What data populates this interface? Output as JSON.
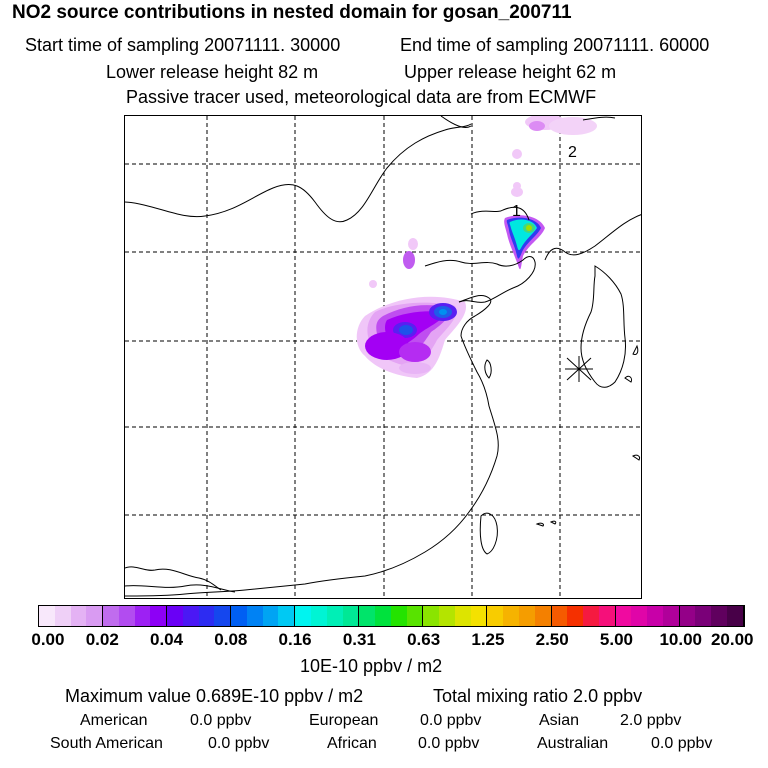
{
  "header": {
    "title": "NO2 source contributions in nested domain for gosan_200711",
    "start_time": "Start time of sampling 20071111. 30000",
    "end_time": "End time of sampling 20071111. 60000",
    "lower_release": "Lower release height   82 m",
    "upper_release": "Upper release height   62 m",
    "tracer_note": "Passive tracer used, meteorological data are from ECMWF"
  },
  "map": {
    "label_1": "1",
    "label_2": "2",
    "colors": {
      "plume_light": "#e7a6f7",
      "plume_mid": "#a100f5",
      "plume_blue": "#1947e6",
      "plume_cyan": "#00e8e0",
      "plume_green": "#54d000"
    }
  },
  "colorbar": {
    "ticks": [
      "0.00",
      "0.02",
      "0.04",
      "0.08",
      "0.16",
      "0.31",
      "0.63",
      "1.25",
      "2.50",
      "5.00",
      "10.00",
      "20.00"
    ],
    "colors": [
      "#f8e8fb",
      "#efd0f7",
      "#e4b2f4",
      "#d99bf2",
      "#c06cee",
      "#b24cf0",
      "#9d21f3",
      "#8d00f6",
      "#6a00f6",
      "#4b18f5",
      "#2d2cf2",
      "#1547ee",
      "#005ff3",
      "#0082f4",
      "#00a4f3",
      "#00c9f3",
      "#00f4f0",
      "#00f4d4",
      "#00efb6",
      "#00e895",
      "#00e46a",
      "#00e23d",
      "#24e300",
      "#58e300",
      "#8ae400",
      "#b4e400",
      "#dde400",
      "#f4e100",
      "#f8cc00",
      "#f6b300",
      "#f59d00",
      "#f48000",
      "#f55a00",
      "#f53000",
      "#f51a40",
      "#f5107a",
      "#f00aa0",
      "#e005a8",
      "#c800a8",
      "#b0009a",
      "#940088",
      "#7a0078",
      "#60005e",
      "#480048"
    ],
    "units": "10E-10 ppbv / m2"
  },
  "summary": {
    "max_value": "Maximum value  0.689E-10 ppbv / m2",
    "total_mixing": "Total mixing ratio       2.0 ppbv",
    "rows": [
      [
        {
          "label": "American",
          "value": "0.0 ppbv"
        },
        {
          "label": "European",
          "value": "0.0 ppbv"
        },
        {
          "label": "Asian",
          "value": "2.0 ppbv"
        }
      ],
      [
        {
          "label": "South American",
          "value": "0.0 ppbv"
        },
        {
          "label": "African",
          "value": "0.0 ppbv"
        },
        {
          "label": "Australian",
          "value": "0.0 ppbv"
        }
      ]
    ]
  }
}
